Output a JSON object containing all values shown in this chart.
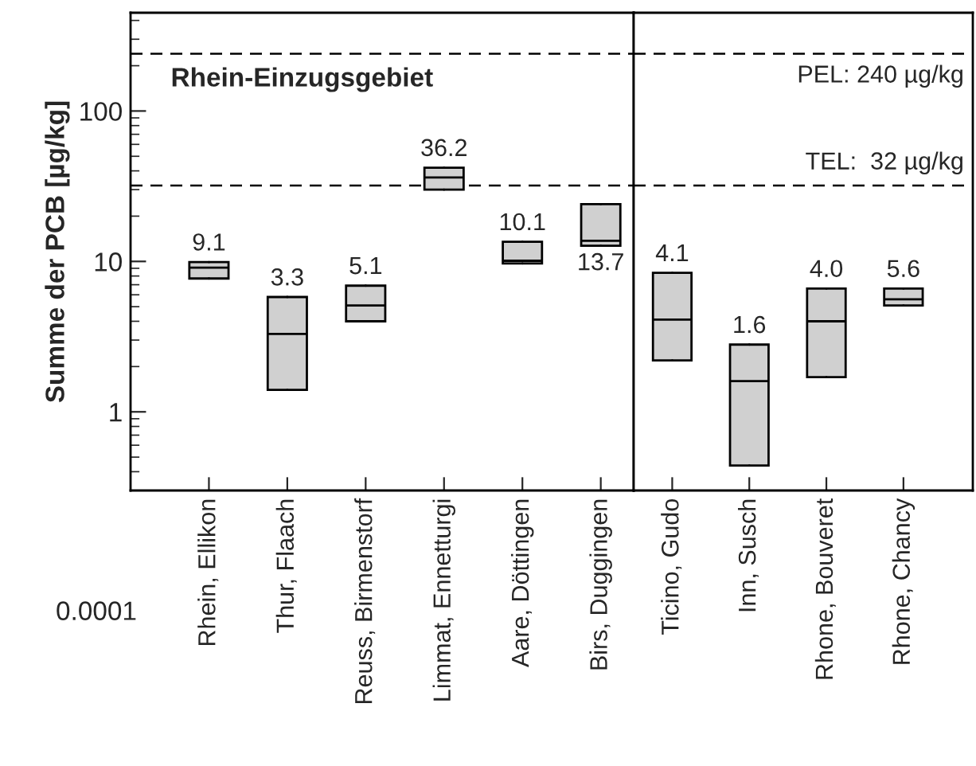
{
  "chart_data": [
    {
      "type": "box",
      "title": "Rhein-Einzugsgebiet",
      "ylabel": "Summe der PCB [µg/kg]",
      "categories": [
        "Rhein, Ellikon",
        "Thur, Flaach",
        "Reuss, Birmenstorf",
        "Limmat, Ennetturgi",
        "Aare, Döttingen",
        "Birs, Duggingen"
      ],
      "boxes": [
        {
          "low": 7.7,
          "q1": 7.7,
          "median": 9.1,
          "q3": 9.9,
          "high": 9.9
        },
        {
          "low": 1.4,
          "q1": 1.4,
          "median": 3.3,
          "q3": 5.8,
          "high": 5.8
        },
        {
          "low": 4.0,
          "q1": 4.0,
          "median": 5.1,
          "q3": 6.9,
          "high": 6.9
        },
        {
          "low": 30,
          "q1": 30,
          "median": 36.2,
          "q3": 42,
          "high": 42
        },
        {
          "low": 9.7,
          "q1": 9.7,
          "median": 10.1,
          "q3": 13.5,
          "high": 13.5
        },
        {
          "low": 12.7,
          "q1": 12.7,
          "median": 13.7,
          "q3": 24,
          "high": 24
        }
      ],
      "value_labels": [
        "9.1",
        "3.3",
        "5.1",
        "36.2",
        "10.1",
        "13.7"
      ],
      "color": "#d0d0d0",
      "log": true,
      "ylim": [
        0.3,
        450
      ],
      "yticks": [
        1,
        10,
        100
      ],
      "ref_lines": [
        {
          "axis": "y",
          "value": 240,
          "line_style": "dashed"
        },
        {
          "axis": "y",
          "value": 32,
          "line_style": "dashed"
        }
      ],
      "annotations": [
        "0.0001"
      ],
      "grid": false
    },
    {
      "type": "box",
      "categories": [
        "Ticino, Gudo",
        "Inn, Susch",
        "Rhone, Bouveret",
        "Rhone, Chancy"
      ],
      "boxes": [
        {
          "low": 2.2,
          "q1": 2.2,
          "median": 4.1,
          "q3": 8.4,
          "high": 8.4
        },
        {
          "low": 0.44,
          "q1": 0.44,
          "median": 1.6,
          "q3": 2.8,
          "high": 2.8
        },
        {
          "low": 1.7,
          "q1": 1.7,
          "median": 4.0,
          "q3": 6.6,
          "high": 6.6
        },
        {
          "low": 5.1,
          "q1": 5.1,
          "median": 5.6,
          "q3": 6.6,
          "high": 6.6
        }
      ],
      "value_labels": [
        "4.1",
        "1.6",
        "4.0",
        "5.6"
      ],
      "color": "#d0d0d0",
      "log": true,
      "ylim": [
        0.3,
        450
      ],
      "yticks": [
        1,
        10,
        100
      ],
      "tick_labels": "x",
      "ref_lines": [
        {
          "axis": "y",
          "value": 240,
          "label": "PEL: 240 µg/kg",
          "line_style": "dashed"
        },
        {
          "axis": "y",
          "value": 32,
          "label": "TEL:  32 µg/kg",
          "line_style": "dashed"
        }
      ],
      "grid": false
    }
  ]
}
